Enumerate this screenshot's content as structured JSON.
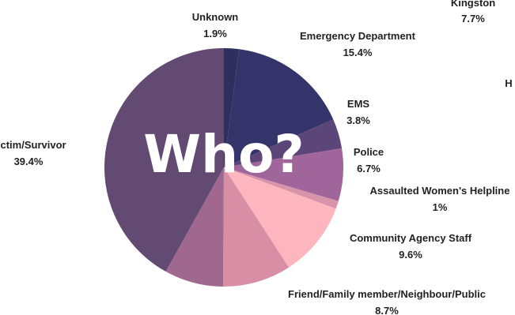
{
  "chart_data": {
    "type": "pie",
    "overlay_text": "Who?",
    "slices": [
      {
        "label": "Unknown",
        "value": 1.9,
        "value_text": "1.9%",
        "color": "#2e2f5f"
      },
      {
        "label": "Emergency Department",
        "value": 15.4,
        "value_text": "15.4%",
        "color": "#34346b"
      },
      {
        "label": "EMS",
        "value": 3.8,
        "value_text": "3.8%",
        "color": "#5c4579"
      },
      {
        "label": "Police",
        "value": 6.7,
        "value_text": "6.7%",
        "color": "#a0659b"
      },
      {
        "label": "Assaulted Women's Helpline",
        "value": 1,
        "value_text": "1%",
        "color": "#d894ab"
      },
      {
        "label": "Community Agency Staff",
        "value": 9.6,
        "value_text": "9.6%",
        "color": "#fdb6bd"
      },
      {
        "label": "Friend/Family member/Neighbour/Public",
        "value": 8.7,
        "value_text": "8.7%",
        "color": "#d88fa6"
      },
      {
        "label": "",
        "value": 7.5,
        "value_text": "",
        "color": "#a0678f"
      },
      {
        "label": "Victim/Survivor",
        "value": 39.4,
        "value_text": "39.4%",
        "color": "#634a73"
      }
    ],
    "clipped_labels": [
      {
        "label": "Kingston",
        "value_text": "7.7%"
      },
      {
        "label": "H",
        "value_text": ""
      }
    ]
  }
}
